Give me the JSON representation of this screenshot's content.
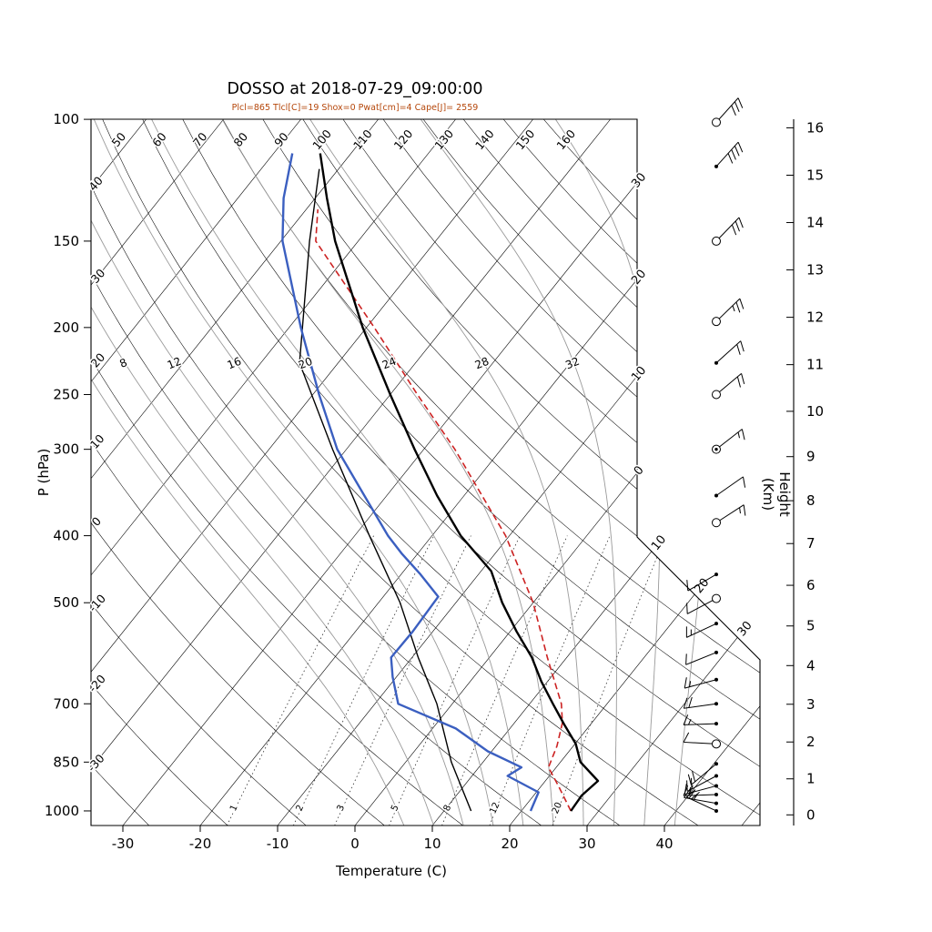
{
  "title": "DOSSO at 2018-07-29_09:00:00",
  "params_line": "Plcl=865 Tlcl[C]=19 Shox=0 Pwat[cm]=4 Cape[J]= 2559",
  "axes": {
    "pressure": {
      "label": "P (hPa)",
      "ticks": [
        100,
        150,
        200,
        250,
        300,
        400,
        500,
        700,
        850,
        1000
      ]
    },
    "temperature": {
      "label": "Temperature (C)",
      "ticks": [
        -30,
        -20,
        -10,
        0,
        10,
        20,
        30,
        40
      ]
    },
    "height": {
      "label": "Height (Km)",
      "ticks": [
        0,
        1,
        2,
        3,
        4,
        5,
        6,
        7,
        8,
        9,
        10,
        11,
        12,
        13,
        14,
        15,
        16
      ]
    }
  },
  "background": {
    "dry_adiabat_top_labels": [
      50,
      60,
      70,
      80,
      90,
      100,
      110,
      120,
      130,
      140,
      150,
      160
    ],
    "dry_adiabat_left_labels": [
      40,
      30,
      20,
      10,
      0,
      -10,
      -20,
      -30
    ],
    "isotherm_right_labels": [
      {
        "t": -30,
        "label": "30"
      },
      {
        "t": -20,
        "label": "20"
      },
      {
        "t": -10,
        "label": "10"
      },
      {
        "t": 0,
        "label": "0"
      }
    ],
    "isotherm_diagonal_labels": [
      {
        "t": 10,
        "label": "10"
      },
      {
        "t": 20,
        "label": "20"
      },
      {
        "t": 30,
        "label": "30"
      }
    ],
    "moist_adiabat_labels": [
      8,
      12,
      16,
      20,
      24,
      28,
      32
    ],
    "moist_adiabat_values": [
      4,
      8,
      12,
      16,
      20,
      24,
      28,
      32,
      36,
      40
    ],
    "mixing_ratio_labels": [
      "1",
      "2",
      "3",
      "5",
      "8",
      "12",
      "20"
    ],
    "mixing_ratio_values": [
      1,
      2,
      3,
      5,
      8,
      12,
      20
    ]
  },
  "colors": {
    "temperature": "#000000",
    "dewpoint": "#3b5fc0",
    "parcel": "#cc2222",
    "aux": "#000000",
    "moist_adiabat": "#9a9a9a",
    "subtitle": "#b5470b"
  },
  "chart_data": {
    "type": "skewt-logp",
    "station": "DOSSO",
    "datetime": "2018-07-29_09:00:00",
    "indices": {
      "Plcl": 865,
      "Tlcl_C": 19,
      "Shox": 0,
      "Pwat_cm": 4,
      "Cape_J": 2559
    },
    "pressure_range_hpa": [
      100,
      1050
    ],
    "temperature_axis_c": [
      -35,
      45
    ],
    "temperature_profile": [
      {
        "p": 1000,
        "t": 26.4
      },
      {
        "p": 950,
        "t": 26.2
      },
      {
        "p": 905,
        "t": 26.8
      },
      {
        "p": 850,
        "t": 22.6
      },
      {
        "p": 800,
        "t": 20.1
      },
      {
        "p": 750,
        "t": 16.6
      },
      {
        "p": 700,
        "t": 13.0
      },
      {
        "p": 650,
        "t": 9.2
      },
      {
        "p": 600,
        "t": 5.5
      },
      {
        "p": 550,
        "t": 0.8
      },
      {
        "p": 500,
        "t": -4.0
      },
      {
        "p": 450,
        "t": -8.7
      },
      {
        "p": 400,
        "t": -16.3
      },
      {
        "p": 350,
        "t": -23.5
      },
      {
        "p": 300,
        "t": -31.2
      },
      {
        "p": 250,
        "t": -40.0
      },
      {
        "p": 200,
        "t": -50.5
      },
      {
        "p": 150,
        "t": -63.0
      },
      {
        "p": 130,
        "t": -68.5
      },
      {
        "p": 112,
        "t": -74.0
      }
    ],
    "dewpoint_profile": [
      {
        "p": 1000,
        "t": 21.2
      },
      {
        "p": 940,
        "t": 20.3
      },
      {
        "p": 890,
        "t": 14.6
      },
      {
        "p": 865,
        "t": 15.5
      },
      {
        "p": 820,
        "t": 9.5
      },
      {
        "p": 760,
        "t": 3.0
      },
      {
        "p": 700,
        "t": -7.0
      },
      {
        "p": 640,
        "t": -10.5
      },
      {
        "p": 600,
        "t": -12.7
      },
      {
        "p": 550,
        "t": -12.6
      },
      {
        "p": 490,
        "t": -12.9
      },
      {
        "p": 455,
        "t": -17.5
      },
      {
        "p": 425,
        "t": -22.0
      },
      {
        "p": 400,
        "t": -25.7
      },
      {
        "p": 350,
        "t": -32.9
      },
      {
        "p": 300,
        "t": -41.2
      },
      {
        "p": 250,
        "t": -49.2
      },
      {
        "p": 200,
        "t": -58.5
      },
      {
        "p": 150,
        "t": -69.8
      },
      {
        "p": 130,
        "t": -74.1
      },
      {
        "p": 112,
        "t": -77.6
      }
    ],
    "parcel_profile": [
      {
        "p": 1000,
        "t": 26.4
      },
      {
        "p": 920,
        "t": 22.2
      },
      {
        "p": 865,
        "t": 19.0
      },
      {
        "p": 806,
        "t": 17.9
      },
      {
        "p": 746,
        "t": 16.2
      },
      {
        "p": 700,
        "t": 14.1
      },
      {
        "p": 600,
        "t": 7.5
      },
      {
        "p": 500,
        "t": 0.0
      },
      {
        "p": 400,
        "t": -10.5
      },
      {
        "p": 300,
        "t": -26.0
      },
      {
        "p": 250,
        "t": -36.5
      },
      {
        "p": 200,
        "t": -49.0
      },
      {
        "p": 150,
        "t": -65.5
      },
      {
        "p": 135,
        "t": -68.5
      }
    ],
    "aux_profile": [
      {
        "p": 1000,
        "t": 13.5
      },
      {
        "p": 850,
        "t": 5.9
      },
      {
        "p": 700,
        "t": -2.0
      },
      {
        "p": 600,
        "t": -9.2
      },
      {
        "p": 500,
        "t": -17.2
      },
      {
        "p": 400,
        "t": -28.1
      },
      {
        "p": 300,
        "t": -41.8
      },
      {
        "p": 225,
        "t": -55.0
      },
      {
        "p": 150,
        "t": -66.3
      },
      {
        "p": 118,
        "t": -72.5
      }
    ],
    "wind_barbs": [
      {
        "p": 101,
        "marker": "circle",
        "angle": -48,
        "full": 3,
        "half": 0
      },
      {
        "p": 117,
        "marker": "dot",
        "angle": -48,
        "full": 4,
        "half": 0
      },
      {
        "p": 150,
        "marker": "circle",
        "angle": -46,
        "full": 3,
        "half": 0
      },
      {
        "p": 196,
        "marker": "circle",
        "angle": -44,
        "full": 2,
        "half": 1
      },
      {
        "p": 225,
        "marker": "dot",
        "angle": -42,
        "full": 2,
        "half": 0
      },
      {
        "p": 250,
        "marker": "circle",
        "angle": -40,
        "full": 2,
        "half": 0
      },
      {
        "p": 300,
        "marker": "circled-dot",
        "angle": -38,
        "full": 1,
        "half": 1
      },
      {
        "p": 350,
        "marker": "dot",
        "angle": -35,
        "full": 1,
        "half": 0
      },
      {
        "p": 383,
        "marker": "circle",
        "angle": -33,
        "full": 1,
        "half": 1
      },
      {
        "p": 455,
        "marker": "dot",
        "angle": 150,
        "full": 1,
        "half": 0
      },
      {
        "p": 493,
        "marker": "circle",
        "angle": 152,
        "full": 1,
        "half": 0
      },
      {
        "p": 536,
        "marker": "dot",
        "angle": 155,
        "full": 1,
        "half": 1
      },
      {
        "p": 590,
        "marker": "dot",
        "angle": 158,
        "full": 1,
        "half": 0
      },
      {
        "p": 646,
        "marker": "dot",
        "angle": 165,
        "full": 1,
        "half": 1
      },
      {
        "p": 700,
        "marker": "dot",
        "angle": 172,
        "full": 2,
        "half": 0
      },
      {
        "p": 748,
        "marker": "dot",
        "angle": 178,
        "full": 1,
        "half": 1
      },
      {
        "p": 800,
        "marker": "circle",
        "angle": 183,
        "full": 1,
        "half": 0
      },
      {
        "p": 855,
        "marker": "dot",
        "angle": 140,
        "full": 2,
        "half": 0
      },
      {
        "p": 890,
        "marker": "dot",
        "angle": 152,
        "full": 2,
        "half": 0
      },
      {
        "p": 920,
        "marker": "dot",
        "angle": 165,
        "full": 1,
        "half": 1
      },
      {
        "p": 947,
        "marker": "dot",
        "angle": 178,
        "full": 2,
        "half": 0
      },
      {
        "p": 975,
        "marker": "dot",
        "angle": 190,
        "full": 2,
        "half": 1
      },
      {
        "p": 1000,
        "marker": "dot",
        "angle": 205,
        "full": 2,
        "half": 0
      }
    ]
  }
}
